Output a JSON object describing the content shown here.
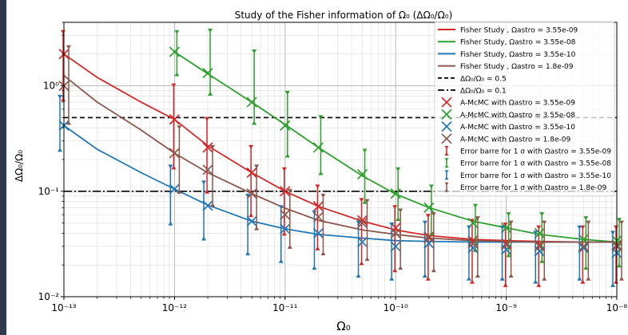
{
  "chart_data": {
    "type": "line",
    "title": "Study of the Fisher information of Ω₀ (ΔΩ₀/Ω₀)",
    "xlabel": "Ω₀",
    "ylabel": "ΔΩ₀/Ω₀",
    "xscale": "log",
    "yscale": "log",
    "xlim": [
      1e-13,
      1e-08
    ],
    "ylim": [
      0.01,
      4
    ],
    "grid": true,
    "legend_position": "top-right",
    "x_ticks": [
      {
        "value": 1e-13,
        "label": "10⁻¹³"
      },
      {
        "value": 1e-12,
        "label": "10⁻¹²"
      },
      {
        "value": 1e-11,
        "label": "10⁻¹¹"
      },
      {
        "value": 1e-10,
        "label": "10⁻¹⁰"
      },
      {
        "value": 1e-09,
        "label": "10⁻⁹"
      },
      {
        "value": 1e-08,
        "label": "10⁻⁸"
      }
    ],
    "y_ticks": [
      {
        "value": 0.01,
        "label": "10⁻²"
      },
      {
        "value": 0.1,
        "label": "10⁻¹"
      },
      {
        "value": 1,
        "label": "10⁰"
      }
    ],
    "fisher_x": [
      1e-13,
      2e-13,
      5e-13,
      1e-12,
      2e-12,
      5e-12,
      1e-11,
      2e-11,
      5e-11,
      1e-10,
      2e-10,
      5e-10,
      1e-09,
      2e-09,
      5e-09,
      1e-08
    ],
    "fisher_series": [
      {
        "name": "Fisher Study , Ωastro = 3.55e-09",
        "color": "#d62728",
        "values": [
          2.0,
          1.2,
          0.7,
          0.48,
          0.27,
          0.15,
          0.1,
          0.072,
          0.052,
          0.043,
          0.038,
          0.035,
          0.034,
          0.0335,
          0.033,
          0.033
        ]
      },
      {
        "name": "Fisher Study, Ωastro = 3.55e-08",
        "color": "#2ca02c",
        "values": [
          null,
          null,
          null,
          2.1,
          1.3,
          0.7,
          0.43,
          0.26,
          0.14,
          0.094,
          0.07,
          0.052,
          0.045,
          0.039,
          0.035,
          0.033
        ]
      },
      {
        "name": "Fisher Study, Ωastro = 3.55e-10",
        "color": "#1f77b4",
        "values": [
          0.42,
          0.25,
          0.15,
          0.105,
          0.074,
          0.052,
          0.044,
          0.039,
          0.036,
          0.034,
          0.0335,
          0.033,
          0.033,
          0.033,
          0.033,
          0.033
        ]
      },
      {
        "name": "Fisher Study , Ωastro = 1.8e-09",
        "color": "#8c564b",
        "values": [
          1.25,
          0.7,
          0.38,
          0.23,
          0.15,
          0.095,
          0.069,
          0.053,
          0.043,
          0.039,
          0.036,
          0.034,
          0.0335,
          0.033,
          0.033,
          0.033
        ]
      }
    ],
    "reference_lines": [
      {
        "y": 0.5,
        "style": "dashed",
        "label": "ΔΩ₀/Ω₀ = 0.5"
      },
      {
        "y": 0.1,
        "style": "dashdot",
        "label": "ΔΩ₀/Ω₀ = 0.1"
      }
    ],
    "mcmc_x": [
      1e-13,
      1e-12,
      2e-12,
      5e-12,
      1e-11,
      2e-11,
      5e-11,
      1e-10,
      2e-10,
      5e-10,
      1e-09,
      2e-09,
      5e-09,
      1e-08
    ],
    "mcmc_series": [
      {
        "name": "A-McMC with Ωastro = 3.55e-09",
        "error_name": "Error barre for 1 σ with Ωastro = 3.55e-09",
        "color": "#d62728",
        "dx": -1,
        "values": [
          2.0,
          0.48,
          0.26,
          0.15,
          0.1,
          0.072,
          0.053,
          0.045,
          0.037,
          0.034,
          0.032,
          0.031,
          0.03,
          0.031
        ],
        "lower": [
          0.75,
          0.17,
          0.1,
          0.06,
          0.04,
          0.029,
          0.021,
          0.018,
          0.015,
          0.014,
          0.013,
          0.013,
          0.014,
          0.014
        ],
        "upper": [
          3.2,
          1.0,
          0.48,
          0.26,
          0.16,
          0.11,
          0.082,
          0.07,
          0.058,
          0.052,
          0.048,
          0.045,
          0.045,
          0.045
        ]
      },
      {
        "name": "A-McMC with Ωastro = 3.55e-08",
        "error_name": "Error barre for 1 σ with Ωastro = 3.55e-08",
        "color": "#2ca02c",
        "dx": 3,
        "values": [
          null,
          2.1,
          1.32,
          0.7,
          0.42,
          0.26,
          0.145,
          0.095,
          0.07,
          0.05,
          0.045,
          0.04,
          0.035,
          0.034
        ],
        "lower": [
          null,
          1.3,
          0.85,
          0.45,
          0.22,
          0.15,
          0.08,
          0.055,
          0.04,
          0.028,
          0.025,
          0.022,
          0.019,
          0.02
        ],
        "upper": [
          null,
          3.2,
          3.3,
          2.1,
          0.85,
          0.5,
          0.24,
          0.16,
          0.11,
          0.072,
          0.06,
          0.06,
          0.055,
          0.053
        ]
      },
      {
        "name": "A-McMC with Ωastro = 3.55e-10",
        "error_name": "Error barre for 1 σ with Ωastro = 3.55e-10",
        "color": "#1f77b4",
        "dx": -5,
        "values": [
          0.42,
          0.105,
          0.073,
          0.052,
          0.044,
          0.04,
          0.033,
          0.03,
          0.032,
          0.029,
          0.028,
          0.027,
          0.029,
          0.026
        ],
        "lower": [
          0.25,
          0.05,
          0.036,
          0.026,
          0.022,
          0.019,
          0.016,
          0.015,
          0.016,
          0.015,
          0.015,
          0.014,
          0.015,
          0.013
        ],
        "upper": [
          0.78,
          0.17,
          0.12,
          0.09,
          0.07,
          0.062,
          0.05,
          0.048,
          0.05,
          0.045,
          0.045,
          0.04,
          0.045,
          0.04
        ]
      },
      {
        "name": "A-McMC with Ωastro = 1.8e-09",
        "error_name": "Error barre for 1 σ with Ωastro = 1.8e-09",
        "color": "#8c564b",
        "dx": 6,
        "values": [
          1.0,
          0.23,
          0.16,
          0.095,
          0.06,
          0.057,
          0.05,
          0.04,
          0.036,
          0.032,
          0.031,
          0.03,
          0.03,
          0.03
        ],
        "lower": [
          0.45,
          0.1,
          0.075,
          0.045,
          0.03,
          0.026,
          0.023,
          0.019,
          0.018,
          0.016,
          0.016,
          0.015,
          0.015,
          0.015
        ],
        "upper": [
          2.3,
          0.4,
          0.26,
          0.17,
          0.1,
          0.09,
          0.08,
          0.065,
          0.06,
          0.055,
          0.05,
          0.05,
          0.05,
          0.05
        ]
      }
    ]
  }
}
